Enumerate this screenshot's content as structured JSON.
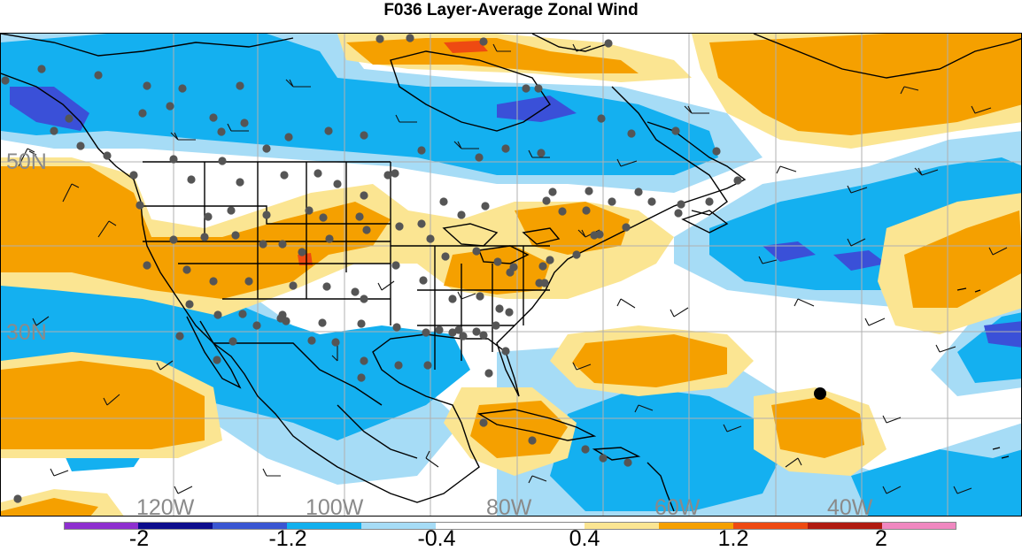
{
  "title": "F036 Layer-Average Zonal Wind",
  "map": {
    "lat_labels": [
      "50N",
      "30N"
    ],
    "lon_labels": [
      "120W",
      "100W",
      "80W",
      "60W",
      "40W"
    ]
  },
  "colors": {
    "strong_negative": "#1515a0",
    "medium_negative": "#3a50d8",
    "negative": "#14b0f0",
    "weak_negative": "#a6dcf6",
    "neutral": "#ffffff",
    "weak_positive": "#fbe592",
    "positive": "#f5a000",
    "strong_positive": "#ee4a12",
    "station_dot": "#555555",
    "gridline": "#b0b0b0"
  },
  "colorbar": {
    "segments": [
      "#8e2fcf",
      "#0c0c8c",
      "#3a56d2",
      "#12b0ee",
      "#a6dcf6",
      "#ffffff",
      "#ffffff",
      "#fbe592",
      "#f5a000",
      "#ee4a12",
      "#b01a10",
      "#f088c0"
    ],
    "tick_labels": [
      "-2",
      "-1.2",
      "-0.4",
      "0.4",
      "1.2",
      "2"
    ]
  }
}
